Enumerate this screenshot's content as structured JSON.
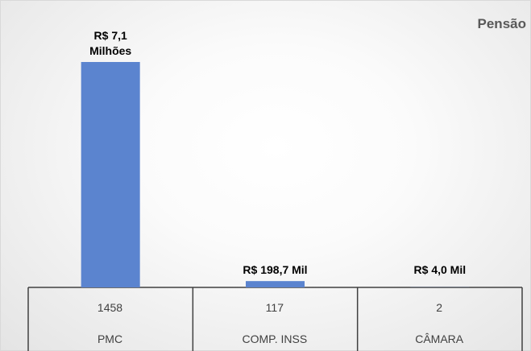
{
  "chart_data": {
    "type": "bar",
    "title": "Pensão",
    "categories": [
      "PMC",
      "COMP. INSS",
      "CÂMARA"
    ],
    "counts": [
      1458,
      117,
      2
    ],
    "values": [
      7100000,
      198700,
      4000
    ],
    "value_labels": [
      "R$ 7,1 Milhões",
      "R$ 198,7 Mil",
      "R$ 4,0 Mil"
    ],
    "color": "#5b84cf"
  }
}
